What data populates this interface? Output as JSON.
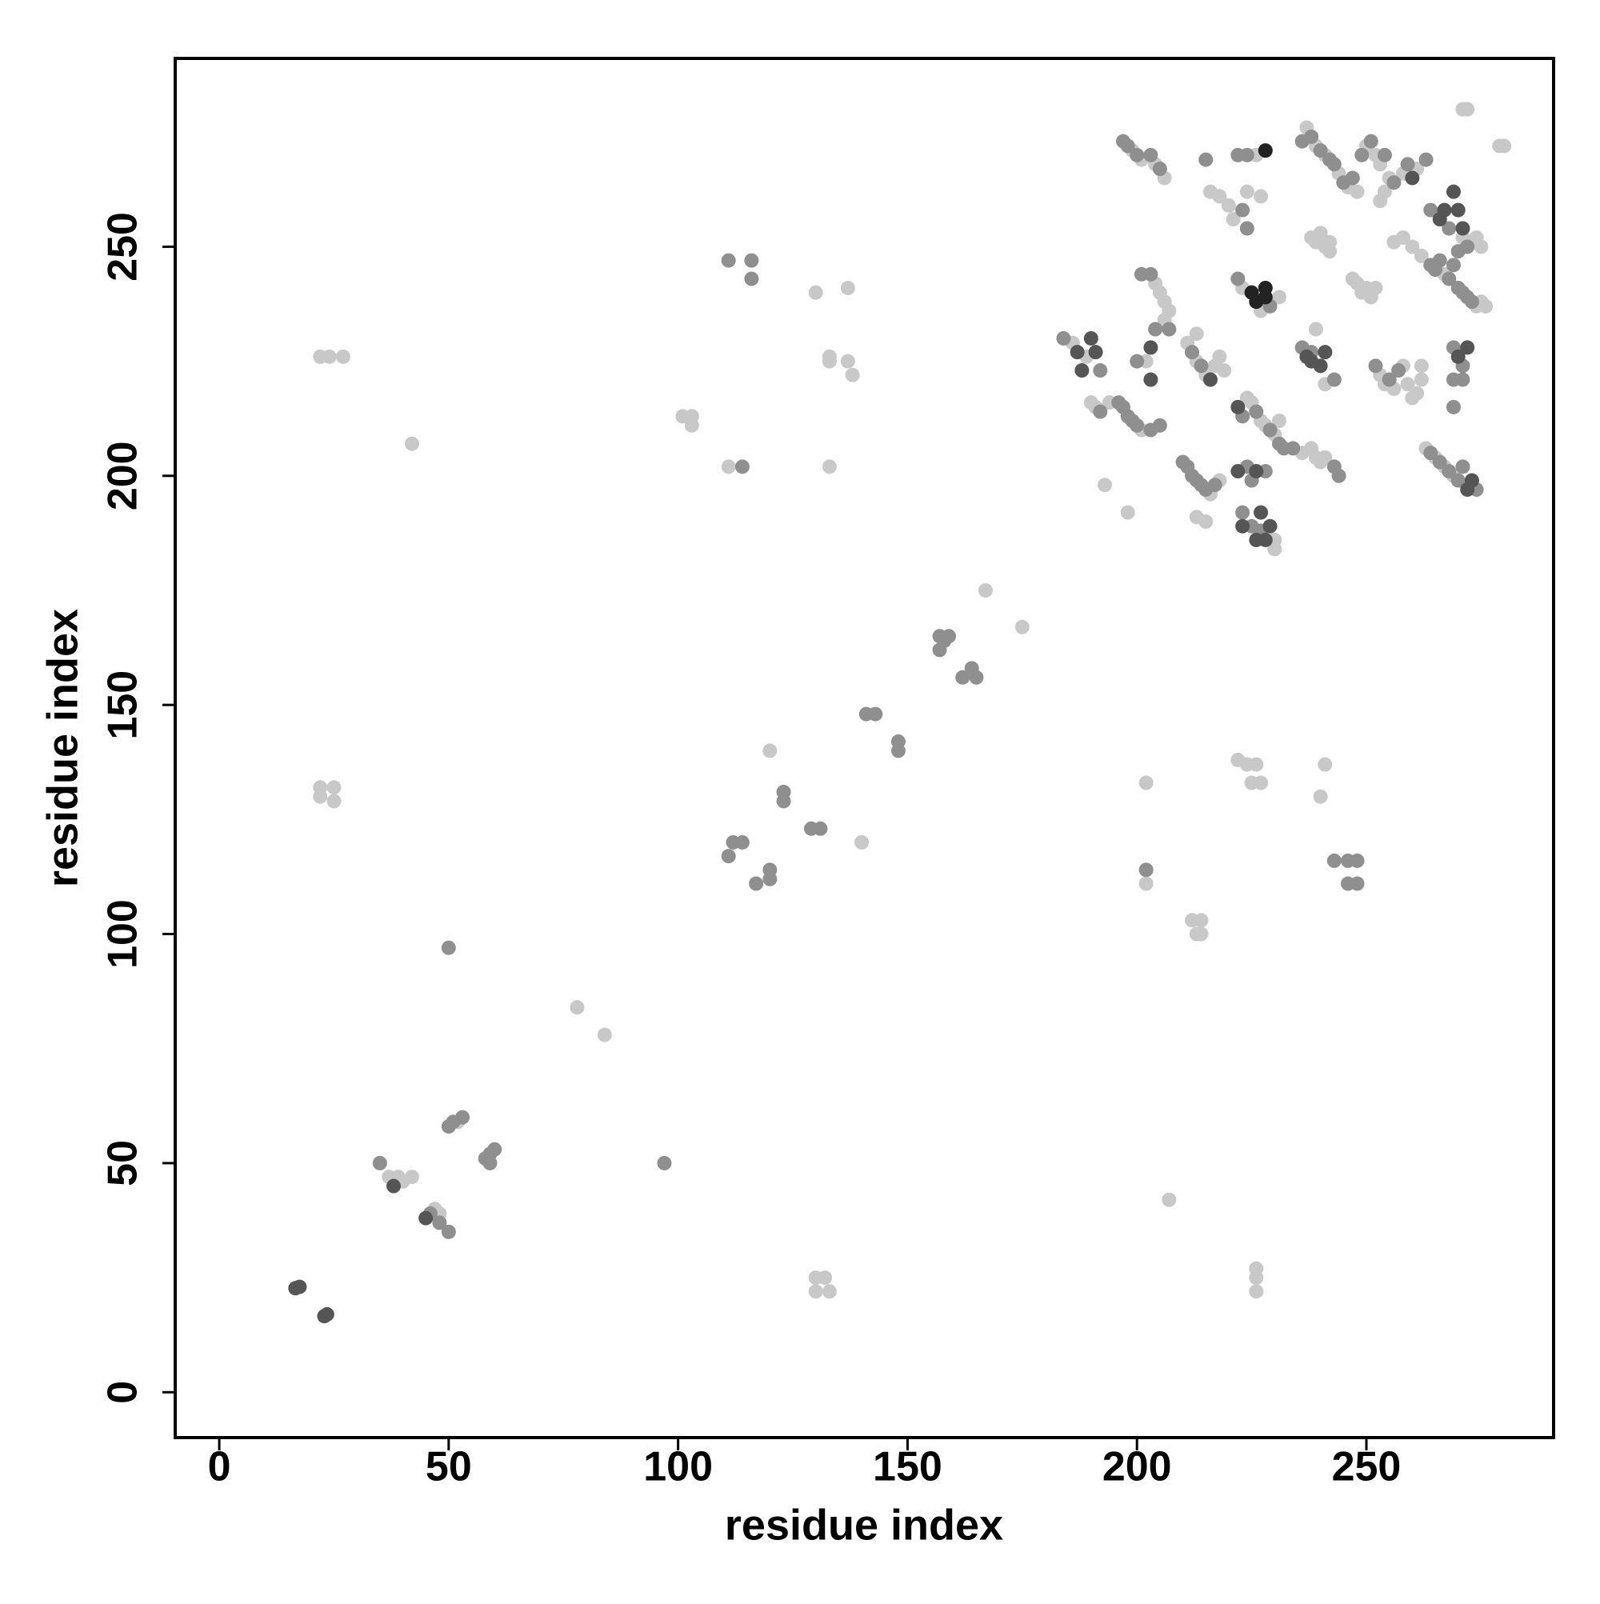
{
  "chart_data": {
    "type": "scatter",
    "x_label": "residue index",
    "y_label": "residue index",
    "xlim": [
      -9.6,
      290.8
    ],
    "ylim": [
      -9.9,
      291.1
    ],
    "xticks": [
      0,
      50,
      100,
      150,
      200,
      250
    ],
    "yticks": [
      0,
      50,
      100,
      150,
      200,
      250
    ],
    "series": [
      {
        "color": "#c8c8c8",
        "x": [
          37,
          39,
          40,
          42,
          47,
          48,
          52,
          78,
          84,
          22,
          24,
          27,
          42,
          22,
          25,
          22,
          25,
          130,
          132,
          133,
          130,
          101,
          103,
          103,
          111,
          130,
          137,
          133,
          133,
          137,
          138,
          133,
          120,
          140,
          167,
          175,
          202,
          202,
          212,
          214,
          213,
          214,
          207,
          226,
          226,
          226,
          222,
          224,
          226,
          225,
          227,
          240,
          241,
          199,
          201,
          204,
          206,
          226,
          216,
          218,
          220,
          221,
          224,
          227,
          223,
          227,
          231,
          204,
          205,
          206,
          207,
          206,
          202,
          186,
          189,
          190,
          191,
          194,
          201,
          193,
          198,
          211,
          213,
          215,
          217,
          218,
          219,
          213,
          224,
          225,
          227,
          228,
          230,
          231,
          236,
          238,
          239,
          241,
          240,
          216,
          218,
          213,
          215,
          230,
          230,
          239,
          241,
          237,
          239,
          241,
          244,
          246,
          248,
          250,
          252,
          253,
          255,
          258,
          261,
          238,
          239,
          240,
          241,
          242,
          242,
          247,
          248,
          249,
          250,
          252,
          251,
          253,
          254,
          256,
          258,
          260,
          262,
          267,
          274,
          275,
          276,
          271,
          273,
          274,
          275,
          253,
          254,
          256,
          258,
          259,
          260,
          261,
          262,
          262,
          263,
          265,
          267,
          269,
          271,
          272,
          279,
          280
        ],
        "values": [
          47,
          47,
          46,
          47,
          40,
          39,
          59,
          84,
          78,
          226,
          226,
          226,
          207,
          132,
          132,
          130,
          129,
          25,
          25,
          22,
          22,
          213,
          213,
          211,
          202,
          240,
          241,
          226,
          225,
          225,
          222,
          202,
          140,
          120,
          175,
          167,
          133,
          111,
          103,
          103,
          100,
          100,
          42,
          27,
          25,
          22,
          138,
          137,
          137,
          133,
          133,
          130,
          137,
          271,
          269,
          268,
          265,
          270,
          262,
          261,
          259,
          256,
          262,
          261,
          241,
          236,
          239,
          242,
          240,
          238,
          236,
          234,
          225,
          229,
          226,
          216,
          215,
          216,
          210,
          198,
          192,
          229,
          225,
          222,
          224,
          226,
          223,
          231,
          217,
          216,
          212,
          211,
          209,
          212,
          205,
          206,
          204,
          204,
          203,
          196,
          199,
          191,
          190,
          184,
          186,
          232,
          220,
          276,
          272,
          270,
          266,
          263,
          262,
          272,
          270,
          268,
          265,
          266,
          267,
          252,
          251,
          253,
          250,
          249,
          251,
          243,
          242,
          240,
          241,
          241,
          239,
          260,
          262,
          251,
          252,
          250,
          248,
          244,
          237,
          238,
          237,
          252,
          251,
          252,
          250,
          222,
          220,
          219,
          224,
          220,
          217,
          218,
          221,
          224,
          206,
          204,
          202,
          200,
          280,
          280,
          272,
          272
        ]
      },
      {
        "color": "#8f8f8f",
        "x": [
          35,
          46,
          48,
          50,
          50,
          51,
          53,
          58,
          59,
          60,
          59,
          50,
          97,
          114,
          111,
          116,
          116,
          111,
          112,
          114,
          117,
          120,
          120,
          123,
          123,
          129,
          131,
          141,
          143,
          148,
          148,
          157,
          158,
          159,
          157,
          162,
          164,
          165,
          202,
          243,
          246,
          248,
          246,
          248,
          197,
          198,
          200,
          203,
          205,
          215,
          222,
          224,
          223,
          224,
          222,
          229,
          201,
          203,
          204,
          207,
          200,
          184,
          192,
          192,
          196,
          197,
          198,
          199,
          200,
          203,
          205,
          212,
          214,
          223,
          226,
          229,
          231,
          232,
          234,
          243,
          244,
          210,
          211,
          212,
          213,
          214,
          215,
          217,
          224,
          225,
          228,
          223,
          225,
          227,
          236,
          238,
          243,
          236,
          238,
          240,
          242,
          243,
          245,
          247,
          249,
          251,
          254,
          256,
          259,
          263,
          264,
          265,
          266,
          268,
          269,
          270,
          271,
          272,
          273,
          270,
          272,
          264,
          268,
          252,
          255,
          257,
          269,
          271,
          271,
          269,
          269,
          264,
          266,
          268,
          270,
          271,
          272,
          274
        ],
        "values": [
          50,
          39,
          37,
          35,
          58,
          59,
          60,
          51,
          52,
          53,
          50,
          97,
          50,
          202,
          247,
          247,
          243,
          117,
          120,
          120,
          111,
          112,
          114,
          131,
          129,
          123,
          123,
          148,
          148,
          142,
          140,
          165,
          164,
          165,
          162,
          156,
          158,
          156,
          114,
          116,
          116,
          116,
          111,
          111,
          273,
          272,
          270,
          270,
          267,
          269,
          270,
          270,
          258,
          254,
          243,
          237,
          244,
          244,
          232,
          232,
          225,
          230,
          223,
          214,
          216,
          215,
          213,
          212,
          211,
          210,
          211,
          227,
          224,
          213,
          214,
          210,
          207,
          206,
          206,
          202,
          200,
          203,
          202,
          200,
          199,
          198,
          197,
          198,
          202,
          199,
          201,
          192,
          189,
          188,
          228,
          227,
          221,
          273,
          274,
          271,
          269,
          268,
          264,
          265,
          270,
          273,
          270,
          264,
          268,
          269,
          246,
          245,
          247,
          243,
          246,
          241,
          240,
          239,
          238,
          249,
          250,
          258,
          254,
          224,
          221,
          223,
          228,
          224,
          221,
          221,
          215,
          205,
          203,
          201,
          199,
          202,
          198,
          197
        ]
      },
      {
        "color": "#555555",
        "x": [
          16.6,
          17.5,
          22.9,
          23.5,
          38,
          45,
          203,
          203,
          187,
          188,
          190,
          191,
          216,
          222,
          222,
          226,
          223,
          226,
          227,
          228,
          229,
          237,
          240,
          241,
          238,
          260,
          266,
          267,
          269,
          270,
          271,
          270,
          272,
          273,
          272
        ],
        "values": [
          22.7,
          23,
          16.6,
          17,
          45,
          38,
          228,
          221,
          227,
          223,
          230,
          227,
          221,
          215,
          201,
          201,
          189,
          186,
          192,
          186,
          189,
          226,
          224,
          227,
          225,
          265,
          256,
          258,
          262,
          258,
          254,
          226,
          228,
          199,
          197
        ]
      },
      {
        "color": "#222222",
        "x": [
          228,
          225,
          226,
          228,
          228
        ],
        "values": [
          271,
          240,
          238,
          239,
          241
        ]
      }
    ]
  }
}
